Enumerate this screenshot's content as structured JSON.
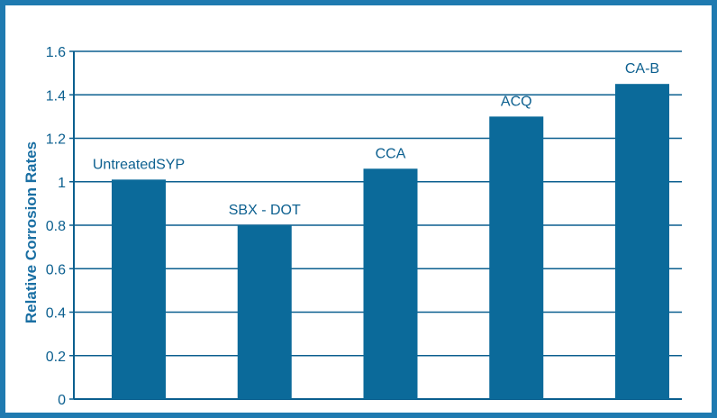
{
  "chart_data": {
    "type": "bar",
    "categories": [
      "UntreatedSYP",
      "SBX - DOT",
      "CCA",
      "ACQ",
      "CA-B"
    ],
    "values": [
      1.01,
      0.8,
      1.06,
      1.3,
      1.45
    ],
    "title": "",
    "xlabel": "",
    "ylabel": "Relative Corrosion Rates",
    "ylim": [
      0,
      1.6
    ],
    "yticks": [
      0,
      0.2,
      0.4,
      0.6,
      0.8,
      1,
      1.2,
      1.4,
      1.6
    ],
    "ytick_labels": [
      "0",
      "0.2",
      "0.4",
      "0.6",
      "0.8",
      "1",
      "1.2",
      "1.4",
      "1.6"
    ],
    "grid": true,
    "legend": "none",
    "colors": {
      "bar": "#0b6a9a",
      "grid": "#0b5f8f",
      "frame": "#1f7ab0",
      "text": "#0b5f8f"
    }
  }
}
